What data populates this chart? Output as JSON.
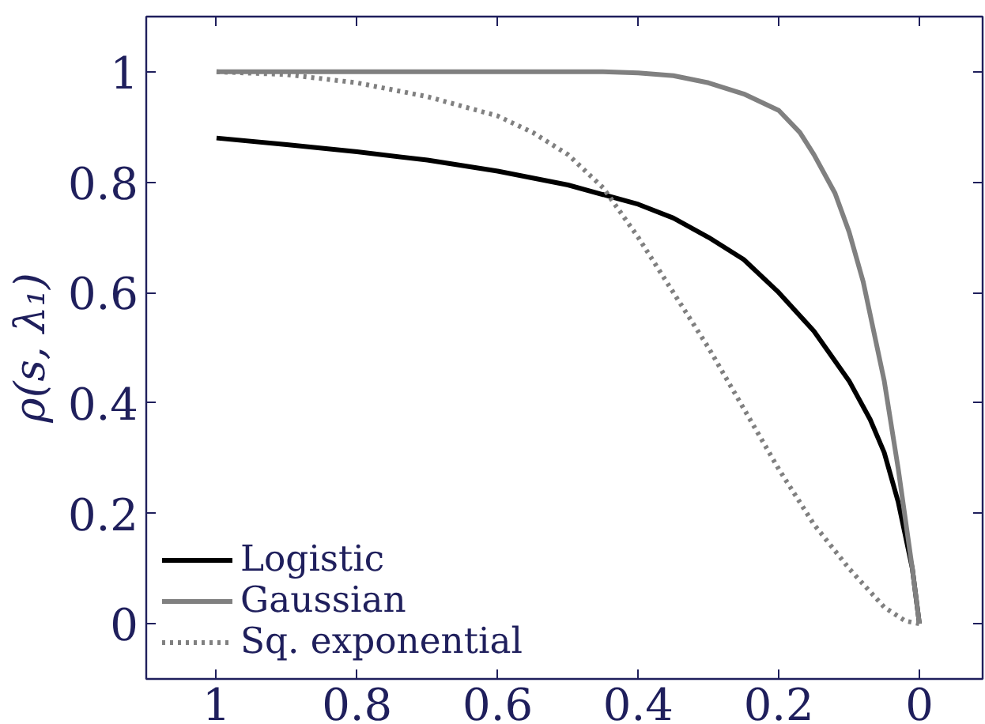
{
  "chart_data": {
    "type": "line",
    "ylabel": "ρ(s, λ₁)",
    "xlim": [
      1.1,
      -0.09
    ],
    "ylim": [
      -0.1,
      1.1
    ],
    "xticks": [
      1,
      0.8,
      0.6,
      0.4,
      0.2,
      0
    ],
    "yticks": [
      0,
      0.2,
      0.4,
      0.6,
      0.8,
      1
    ],
    "grid": false,
    "legend": "bottom left",
    "marker": "none",
    "series": [
      {
        "name": "Logistic",
        "color": "#000000",
        "line_style": "solid",
        "x": [
          1,
          0.9,
          0.8,
          0.7,
          0.6,
          0.5,
          0.4,
          0.35,
          0.3,
          0.25,
          0.2,
          0.15,
          0.1,
          0.07,
          0.05,
          0.03,
          0.01,
          0
        ],
        "values": [
          0.88,
          0.868,
          0.855,
          0.84,
          0.82,
          0.795,
          0.76,
          0.735,
          0.7,
          0.66,
          0.6,
          0.53,
          0.44,
          0.37,
          0.31,
          0.22,
          0.1,
          0.0
        ]
      },
      {
        "name": "Gaussian",
        "color": "#808080",
        "line_style": "solid",
        "x": [
          1,
          0.8,
          0.6,
          0.45,
          0.4,
          0.35,
          0.3,
          0.25,
          0.2,
          0.17,
          0.15,
          0.12,
          0.1,
          0.08,
          0.05,
          0.03,
          0.01,
          0
        ],
        "values": [
          1,
          1,
          1,
          1,
          0.998,
          0.993,
          0.98,
          0.96,
          0.93,
          0.89,
          0.85,
          0.78,
          0.71,
          0.62,
          0.44,
          0.28,
          0.1,
          0.0
        ]
      },
      {
        "name": "Sq. exponential",
        "color": "#808080",
        "line_style": "dotted",
        "x": [
          1,
          0.9,
          0.8,
          0.7,
          0.6,
          0.55,
          0.5,
          0.45,
          0.4,
          0.35,
          0.3,
          0.25,
          0.2,
          0.15,
          0.1,
          0.05,
          0.02,
          0
        ],
        "values": [
          1,
          0.995,
          0.98,
          0.955,
          0.92,
          0.89,
          0.85,
          0.79,
          0.7,
          0.6,
          0.5,
          0.39,
          0.28,
          0.18,
          0.1,
          0.03,
          0.005,
          0.0
        ]
      }
    ]
  }
}
